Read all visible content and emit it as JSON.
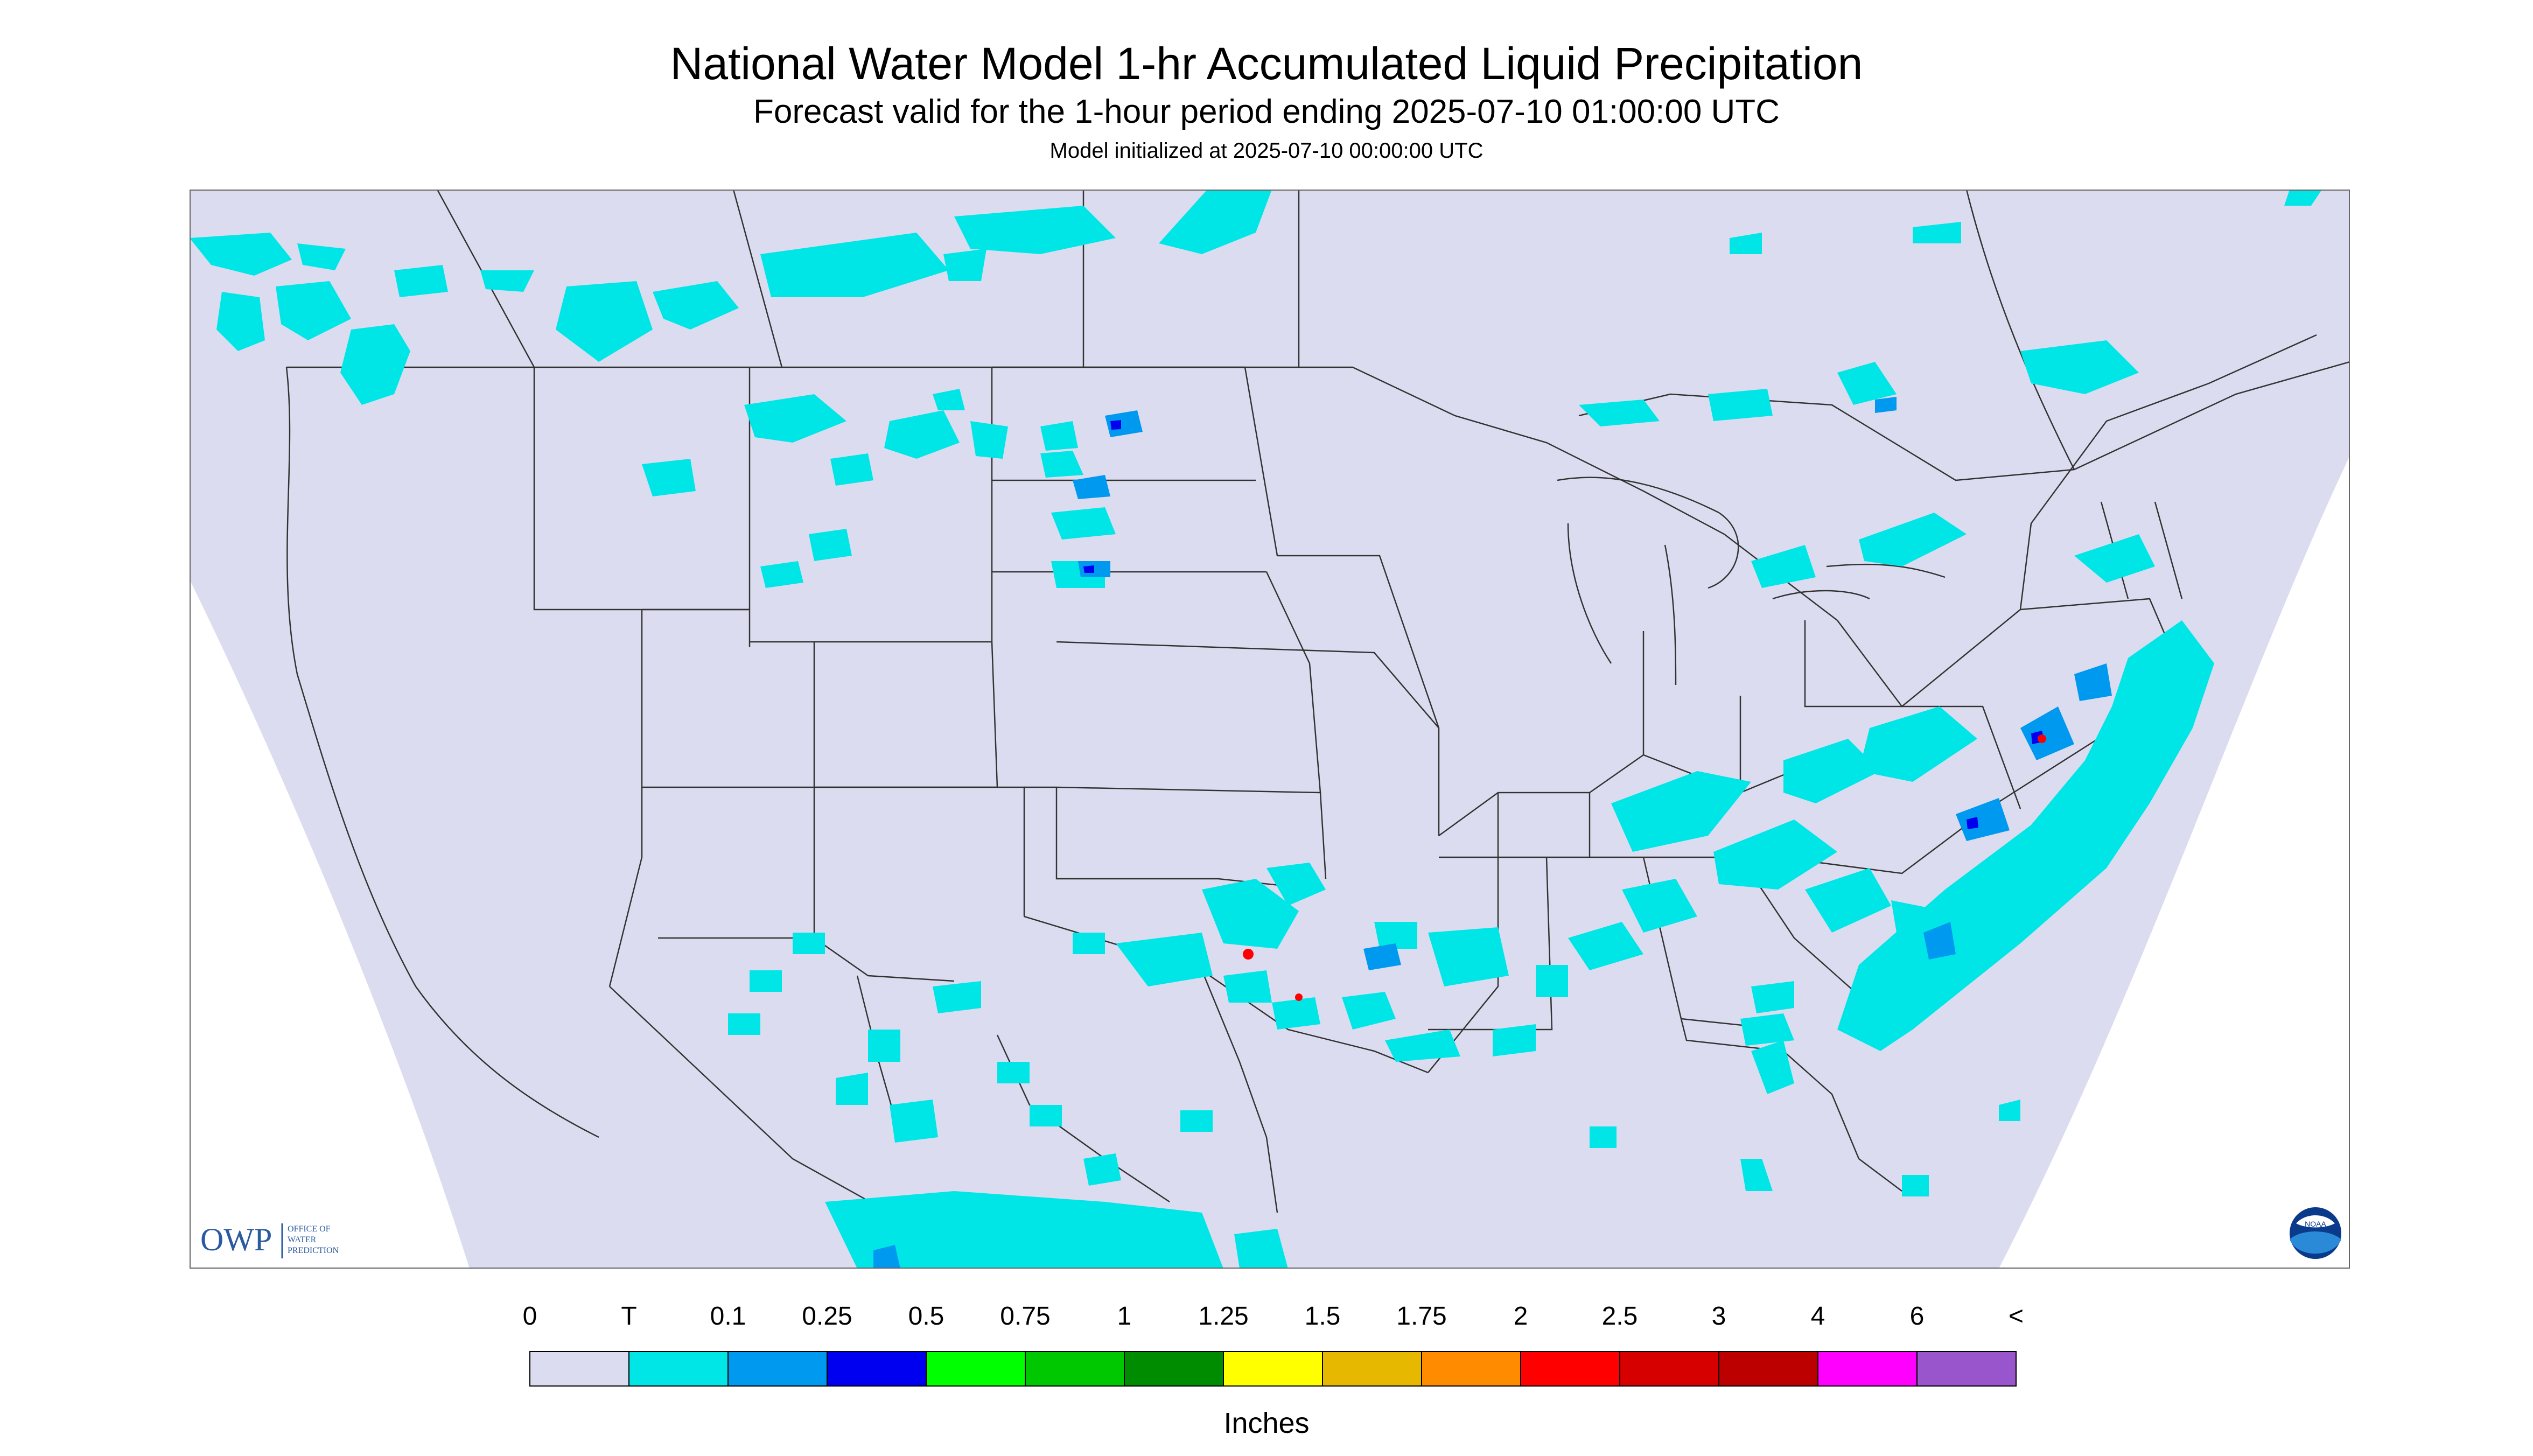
{
  "header": {
    "title": "National Water Model 1-hr Accumulated Liquid Precipitation",
    "subtitle": "Forecast valid for the 1-hour period ending 2025-07-10 01:00:00 UTC",
    "init": "Model initialized at 2025-07-10 00:00:00 UTC"
  },
  "logos": {
    "owp_mark": "OWP",
    "owp_text": [
      "OFFICE OF",
      "WATER",
      "PREDICTION"
    ],
    "noaa_mark": "NOAA"
  },
  "legend": {
    "labels": [
      "0",
      "T",
      "0.1",
      "0.25",
      "0.5",
      "0.75",
      "1",
      "1.25",
      "1.5",
      "1.75",
      "2",
      "2.5",
      "3",
      "4",
      "6",
      "<"
    ],
    "colors": [
      "#dcdcf0",
      "#00e6e6",
      "#0099f0",
      "#0000f0",
      "#00ff00",
      "#00c800",
      "#008c00",
      "#ffff00",
      "#e6b900",
      "#ff8c00",
      "#ff0000",
      "#d70000",
      "#bc0000",
      "#ff00ff",
      "#9955cc"
    ],
    "units": "Inches"
  },
  "colors": {
    "background": "#dcdcf0",
    "trace": "#00e6e6",
    "light": "#0099f0",
    "moderate": "#0000f0",
    "boundary": "#333333"
  }
}
